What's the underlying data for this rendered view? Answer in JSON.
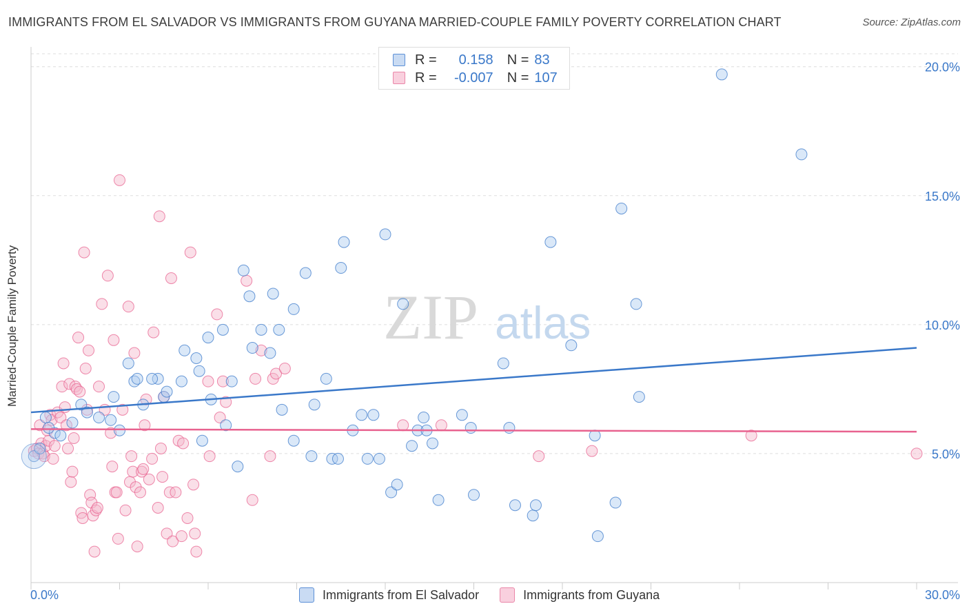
{
  "header": {
    "title": "IMMIGRANTS FROM EL SALVADOR VS IMMIGRANTS FROM GUYANA MARRIED-COUPLE FAMILY POVERTY CORRELATION CHART",
    "source": "Source: ZipAtlas.com"
  },
  "watermark": {
    "zip": "ZIP",
    "atlas": "atlas"
  },
  "legend": {
    "rows": [
      {
        "r_label": "R =",
        "r_value": "0.158",
        "n_label": "N =",
        "n_value": "83"
      },
      {
        "r_label": "R =",
        "r_value": "-0.007",
        "n_label": "N =",
        "n_value": "107"
      }
    ]
  },
  "bottom_legend": {
    "items": [
      {
        "label": "Immigrants from El Salvador"
      },
      {
        "label": "Immigrants from Guyana"
      }
    ]
  },
  "colors": {
    "blue": "#3a78c9",
    "blue_fill": "#aecbef",
    "pink": "#e8628f",
    "pink_fill": "#f5b8cc",
    "grid": "#dddddd"
  },
  "chart_data": {
    "type": "scatter",
    "title": "IMMIGRANTS FROM EL SALVADOR VS IMMIGRANTS FROM GUYANA MARRIED-COUPLE FAMILY POVERTY CORRELATION CHART",
    "xlabel": "",
    "ylabel": "Married-Couple Family Poverty",
    "xlim": [
      0,
      30
    ],
    "ylim": [
      0,
      20.5
    ],
    "x_tick_labels": [
      "0.0%",
      "30.0%"
    ],
    "y_tick_labels": [
      "5.0%",
      "10.0%",
      "15.0%",
      "20.0%"
    ],
    "y_ticks": [
      5,
      10,
      15,
      20
    ],
    "grid": true,
    "legend_position": "top-center",
    "series": [
      {
        "name": "Immigrants from El Salvador",
        "color": "#3a78c9",
        "trend": {
          "x": [
            0,
            30
          ],
          "y": [
            6.6,
            9.1
          ]
        },
        "points": [
          [
            0.1,
            4.9
          ],
          [
            0.5,
            6.4
          ],
          [
            0.8,
            5.8
          ],
          [
            1.0,
            5.7
          ],
          [
            1.4,
            6.2
          ],
          [
            1.7,
            6.9
          ],
          [
            1.9,
            6.6
          ],
          [
            2.3,
            6.4
          ],
          [
            2.8,
            7.2
          ],
          [
            2.7,
            6.3
          ],
          [
            3.0,
            5.9
          ],
          [
            3.3,
            8.5
          ],
          [
            3.5,
            7.8
          ],
          [
            3.6,
            7.9
          ],
          [
            3.8,
            6.9
          ],
          [
            4.3,
            7.9
          ],
          [
            4.1,
            7.9
          ],
          [
            4.5,
            7.2
          ],
          [
            4.6,
            7.4
          ],
          [
            5.2,
            9.0
          ],
          [
            5.1,
            7.8
          ],
          [
            5.7,
            8.2
          ],
          [
            5.6,
            8.7
          ],
          [
            6.0,
            9.5
          ],
          [
            5.8,
            5.5
          ],
          [
            6.5,
            9.8
          ],
          [
            6.1,
            7.1
          ],
          [
            6.8,
            7.8
          ],
          [
            6.6,
            6.1
          ],
          [
            7.2,
            12.1
          ],
          [
            7.0,
            4.5
          ],
          [
            7.4,
            11.1
          ],
          [
            7.5,
            9.1
          ],
          [
            7.8,
            9.8
          ],
          [
            8.1,
            8.9
          ],
          [
            8.2,
            11.2
          ],
          [
            8.4,
            9.8
          ],
          [
            8.5,
            6.7
          ],
          [
            8.9,
            10.6
          ],
          [
            8.9,
            5.5
          ],
          [
            9.3,
            12.0
          ],
          [
            9.6,
            6.9
          ],
          [
            9.5,
            4.9
          ],
          [
            10.0,
            7.9
          ],
          [
            10.2,
            4.8
          ],
          [
            10.4,
            4.8
          ],
          [
            10.5,
            12.2
          ],
          [
            10.6,
            13.2
          ],
          [
            10.9,
            5.9
          ],
          [
            11.2,
            6.5
          ],
          [
            11.4,
            4.8
          ],
          [
            11.6,
            6.5
          ],
          [
            11.8,
            4.8
          ],
          [
            12.0,
            13.5
          ],
          [
            12.2,
            3.5
          ],
          [
            12.4,
            3.8
          ],
          [
            12.6,
            10.8
          ],
          [
            12.9,
            5.3
          ],
          [
            13.1,
            5.9
          ],
          [
            13.3,
            6.4
          ],
          [
            13.4,
            5.9
          ],
          [
            13.6,
            5.4
          ],
          [
            13.8,
            3.2
          ],
          [
            14.6,
            6.5
          ],
          [
            14.9,
            6.0
          ],
          [
            15.0,
            3.4
          ],
          [
            16.0,
            8.5
          ],
          [
            16.2,
            6.0
          ],
          [
            16.4,
            3.0
          ],
          [
            17.0,
            2.6
          ],
          [
            17.1,
            3.0
          ],
          [
            17.6,
            13.2
          ],
          [
            18.3,
            9.2
          ],
          [
            19.1,
            5.7
          ],
          [
            19.2,
            1.8
          ],
          [
            19.8,
            3.1
          ],
          [
            20.0,
            14.5
          ],
          [
            20.5,
            10.8
          ],
          [
            20.6,
            7.2
          ],
          [
            23.4,
            19.7
          ],
          [
            26.1,
            16.6
          ],
          [
            0.3,
            5.2
          ],
          [
            0.6,
            6.0
          ]
        ]
      },
      {
        "name": "Immigrants from Guyana",
        "color": "#e8628f",
        "trend": {
          "x": [
            0,
            30
          ],
          "y": [
            5.95,
            5.85
          ]
        },
        "points": [
          [
            0.1,
            5.1
          ],
          [
            0.2,
            5.2
          ],
          [
            0.25,
            5.0
          ],
          [
            0.3,
            6.1
          ],
          [
            0.35,
            5.4
          ],
          [
            0.4,
            5.0
          ],
          [
            0.45,
            4.9
          ],
          [
            0.5,
            5.3
          ],
          [
            0.55,
            5.9
          ],
          [
            0.6,
            5.5
          ],
          [
            0.65,
            6.5
          ],
          [
            0.7,
            6.3
          ],
          [
            0.75,
            4.8
          ],
          [
            0.8,
            5.3
          ],
          [
            0.9,
            6.6
          ],
          [
            1.0,
            6.4
          ],
          [
            1.05,
            7.6
          ],
          [
            1.1,
            8.5
          ],
          [
            1.15,
            6.8
          ],
          [
            1.2,
            6.1
          ],
          [
            1.25,
            5.2
          ],
          [
            1.3,
            7.7
          ],
          [
            1.35,
            3.9
          ],
          [
            1.4,
            4.3
          ],
          [
            1.45,
            5.6
          ],
          [
            1.5,
            7.6
          ],
          [
            1.55,
            7.5
          ],
          [
            1.6,
            9.5
          ],
          [
            1.65,
            7.4
          ],
          [
            1.7,
            2.7
          ],
          [
            1.75,
            2.5
          ],
          [
            1.8,
            12.8
          ],
          [
            1.85,
            8.3
          ],
          [
            1.9,
            6.7
          ],
          [
            1.95,
            9.0
          ],
          [
            2.0,
            3.4
          ],
          [
            2.05,
            3.1
          ],
          [
            2.1,
            2.6
          ],
          [
            2.15,
            1.2
          ],
          [
            2.2,
            2.8
          ],
          [
            2.25,
            2.9
          ],
          [
            2.3,
            7.6
          ],
          [
            2.4,
            10.8
          ],
          [
            2.5,
            6.7
          ],
          [
            2.6,
            11.9
          ],
          [
            2.7,
            5.8
          ],
          [
            2.75,
            4.5
          ],
          [
            2.8,
            9.4
          ],
          [
            2.85,
            3.5
          ],
          [
            2.9,
            3.5
          ],
          [
            2.95,
            1.7
          ],
          [
            3.0,
            15.6
          ],
          [
            3.1,
            6.7
          ],
          [
            3.2,
            2.8
          ],
          [
            3.3,
            10.7
          ],
          [
            3.35,
            3.9
          ],
          [
            3.4,
            4.9
          ],
          [
            3.45,
            4.3
          ],
          [
            3.5,
            8.9
          ],
          [
            3.55,
            3.7
          ],
          [
            3.6,
            1.4
          ],
          [
            3.7,
            3.5
          ],
          [
            3.75,
            4.3
          ],
          [
            3.8,
            4.4
          ],
          [
            3.85,
            6.1
          ],
          [
            3.9,
            7.1
          ],
          [
            4.0,
            4.0
          ],
          [
            4.1,
            4.8
          ],
          [
            4.15,
            9.7
          ],
          [
            4.3,
            2.9
          ],
          [
            4.35,
            14.2
          ],
          [
            4.4,
            5.2
          ],
          [
            4.45,
            4.1
          ],
          [
            4.5,
            7.2
          ],
          [
            4.6,
            1.9
          ],
          [
            4.7,
            3.5
          ],
          [
            4.75,
            11.8
          ],
          [
            4.8,
            1.6
          ],
          [
            4.9,
            3.5
          ],
          [
            5.0,
            5.5
          ],
          [
            5.1,
            1.8
          ],
          [
            5.15,
            5.4
          ],
          [
            5.3,
            2.5
          ],
          [
            5.4,
            12.8
          ],
          [
            5.5,
            3.8
          ],
          [
            5.55,
            1.9
          ],
          [
            5.6,
            1.2
          ],
          [
            6.0,
            7.8
          ],
          [
            6.05,
            4.9
          ],
          [
            6.3,
            10.4
          ],
          [
            6.4,
            6.4
          ],
          [
            6.5,
            7.8
          ],
          [
            6.6,
            7.0
          ],
          [
            7.3,
            11.7
          ],
          [
            7.5,
            3.2
          ],
          [
            7.6,
            7.9
          ],
          [
            7.8,
            9.0
          ],
          [
            8.1,
            4.9
          ],
          [
            8.2,
            7.9
          ],
          [
            8.3,
            8.1
          ],
          [
            8.6,
            8.3
          ],
          [
            12.6,
            6.1
          ],
          [
            13.9,
            6.1
          ],
          [
            17.2,
            4.9
          ],
          [
            19.0,
            5.1
          ],
          [
            24.4,
            5.7
          ],
          [
            30.0,
            5.0
          ]
        ]
      }
    ]
  }
}
